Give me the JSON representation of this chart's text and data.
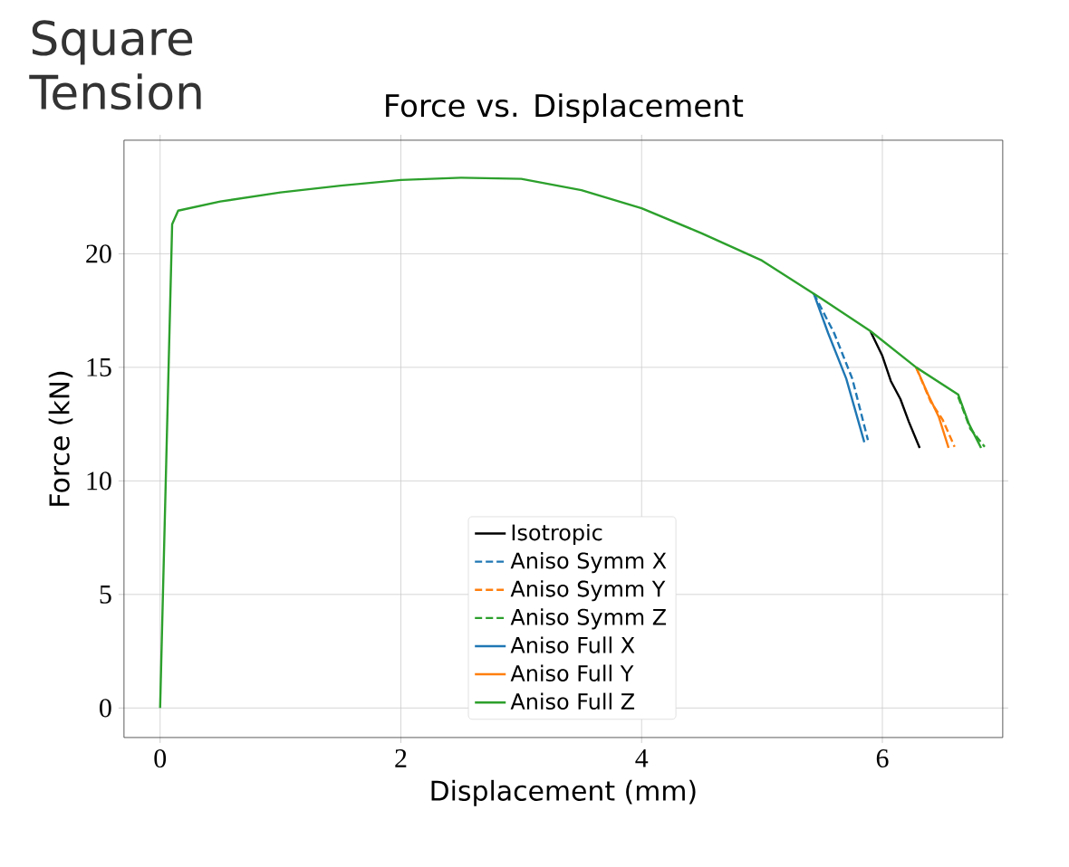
{
  "chart_data": {
    "type": "line",
    "title": "Square Tension",
    "subtitle": "Force vs. Displacement",
    "xlabel": "Displacement (mm)",
    "ylabel": "Force (kN)",
    "xlim": [
      -0.3,
      7.0
    ],
    "ylim": [
      -1.3,
      25
    ],
    "xticks": [
      0,
      2,
      4,
      6
    ],
    "yticks": [
      0,
      5,
      10,
      15,
      20
    ],
    "grid": true,
    "legend": "bottom center",
    "series": [
      {
        "name": "Isotropic",
        "color": "#000000",
        "line_style": "solid",
        "x": [
          5.9,
          6.0,
          6.07,
          6.15,
          6.22,
          6.31
        ],
        "values": [
          16.6,
          15.5,
          14.4,
          13.6,
          12.6,
          11.45
        ]
      },
      {
        "name": "Aniso Symm X",
        "color": "#1f77b4",
        "line_style": "dashed",
        "x": [
          5.43,
          5.6,
          5.75,
          5.88
        ],
        "values": [
          18.25,
          16.5,
          14.5,
          11.8
        ]
      },
      {
        "name": "Aniso Symm Y",
        "color": "#ff7f0e",
        "line_style": "dashed",
        "x": [
          6.28,
          6.4,
          6.5,
          6.6
        ],
        "values": [
          15.0,
          13.5,
          12.7,
          11.5
        ]
      },
      {
        "name": "Aniso Symm Z",
        "color": "#2ca02c",
        "line_style": "dashed",
        "x": [
          6.63,
          6.73,
          6.85
        ],
        "values": [
          13.7,
          12.3,
          11.5
        ]
      },
      {
        "name": "Aniso Full X",
        "color": "#1f77b4",
        "line_style": "solid",
        "x": [
          5.43,
          5.55,
          5.7,
          5.85
        ],
        "values": [
          18.25,
          16.5,
          14.5,
          11.7
        ]
      },
      {
        "name": "Aniso Full Y",
        "color": "#ff7f0e",
        "line_style": "solid",
        "x": [
          6.28,
          6.38,
          6.47,
          6.55
        ],
        "values": [
          15.0,
          13.8,
          12.8,
          11.45
        ]
      },
      {
        "name": "Aniso Full Z",
        "color": "#2ca02c",
        "line_style": "solid",
        "x": [
          0,
          0.1,
          0.15,
          0.5,
          1,
          1.5,
          2,
          2.5,
          3,
          3.5,
          4,
          4.5,
          5,
          5.5,
          5.9,
          6.28,
          6.63,
          6.72,
          6.82
        ],
        "values": [
          0,
          21.3,
          21.9,
          22.3,
          22.7,
          23.0,
          23.25,
          23.35,
          23.3,
          22.8,
          22.0,
          20.9,
          19.7,
          18.0,
          16.6,
          15.0,
          13.8,
          12.5,
          11.45
        ]
      }
    ]
  }
}
